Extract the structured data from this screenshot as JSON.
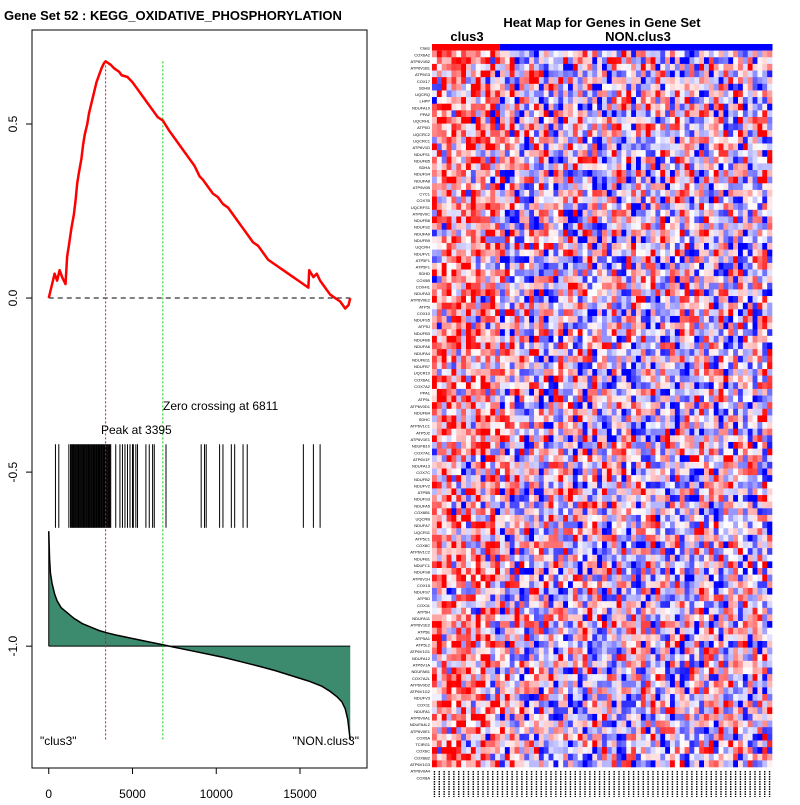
{
  "chart_data": [
    {
      "type": "line",
      "title": "Gene Set  52 : KEGG_OXIDATIVE_PHOSPHORYLATION",
      "xlabel": "",
      "ylabel": "",
      "xlim": [
        -1000,
        19000
      ],
      "ylim": [
        -1.35,
        0.77
      ],
      "x_ticks": [
        0,
        5000,
        10000,
        15000
      ],
      "x_tick_labels": [
        "0",
        "5000",
        "10000",
        "15000"
      ],
      "y_ticks": [
        0.5,
        0.0,
        -0.5,
        -1.0
      ],
      "y_tick_labels": [
        "0.5",
        "0.0",
        "-0.5",
        "-1.0"
      ],
      "n_genes": 18000,
      "running_es": {
        "name": "Enrichment score",
        "color": "#ff0000",
        "x": [
          0,
          200,
          350,
          500,
          650,
          800,
          1000,
          1100,
          1200,
          1350,
          1500,
          1600,
          1700,
          1800,
          1950,
          2050,
          2150,
          2300,
          2400,
          2550,
          2700,
          2850,
          3000,
          3150,
          3300,
          3395,
          3550,
          3700,
          3900,
          4200,
          4350,
          4700,
          5000,
          5300,
          5600,
          5900,
          6200,
          6500,
          6811,
          7200,
          7500,
          7800,
          8100,
          8400,
          8700,
          9000,
          9200,
          9500,
          9800,
          10100,
          10400,
          10700,
          11000,
          11300,
          11600,
          11900,
          12200,
          12500,
          12800,
          13100,
          13400,
          13700,
          14000,
          14300,
          14600,
          14900,
          15200,
          15500,
          15550,
          15800,
          16000,
          16200,
          16500,
          16800,
          17100,
          17400,
          17700,
          17900,
          18000
        ],
        "y": [
          0.0,
          0.04,
          0.07,
          0.05,
          0.08,
          0.06,
          0.04,
          0.12,
          0.15,
          0.2,
          0.24,
          0.28,
          0.33,
          0.36,
          0.4,
          0.44,
          0.47,
          0.5,
          0.53,
          0.56,
          0.59,
          0.62,
          0.64,
          0.66,
          0.675,
          0.68,
          0.675,
          0.67,
          0.66,
          0.65,
          0.64,
          0.635,
          0.62,
          0.6,
          0.58,
          0.56,
          0.54,
          0.52,
          0.51,
          0.48,
          0.46,
          0.44,
          0.42,
          0.4,
          0.38,
          0.35,
          0.34,
          0.32,
          0.3,
          0.29,
          0.27,
          0.26,
          0.24,
          0.22,
          0.2,
          0.18,
          0.16,
          0.15,
          0.13,
          0.11,
          0.1,
          0.09,
          0.08,
          0.07,
          0.06,
          0.05,
          0.04,
          0.03,
          0.08,
          0.06,
          0.07,
          0.05,
          0.03,
          0.01,
          0.0,
          -0.01,
          -0.03,
          -0.02,
          0.0
        ]
      },
      "baseline": {
        "y": 0.0,
        "style": "dashed",
        "color": "#000000"
      },
      "peak": {
        "label": "Peak at 3395",
        "x": 3395,
        "color": "#ff0000"
      },
      "zero_crossing": {
        "label": "Zero crossing at 6811",
        "x": 6811,
        "color": "#00cc00"
      },
      "hit_positions": [
        400,
        600,
        1200,
        1300,
        1350,
        1400,
        1450,
        1500,
        1550,
        1600,
        1650,
        1700,
        1750,
        1800,
        1850,
        1900,
        1950,
        2000,
        2050,
        2100,
        2150,
        2200,
        2250,
        2300,
        2350,
        2400,
        2450,
        2500,
        2550,
        2600,
        2650,
        2700,
        2750,
        2800,
        2850,
        2900,
        2950,
        3000,
        3050,
        3100,
        3150,
        3200,
        3250,
        3300,
        3350,
        3395,
        3450,
        3500,
        3550,
        3600,
        3650,
        3700,
        4000,
        4250,
        4400,
        4550,
        4700,
        4850,
        5000,
        5050,
        5200,
        5300,
        5800,
        6000,
        6200,
        6300,
        7000,
        9100,
        9300,
        9400,
        10200,
        10400,
        10900,
        11100,
        11600,
        11850,
        15200,
        15800,
        16200
      ],
      "hit_tick_range": [
        -0.42,
        -0.66
      ],
      "ranked_metric": {
        "color": "#3d8b6e",
        "baseline": -1.0,
        "x": [
          0,
          50,
          100,
          200,
          350,
          500,
          750,
          1000,
          1500,
          2000,
          2500,
          3000,
          3500,
          4000,
          5000,
          6000,
          6811,
          7500,
          8500,
          9500,
          10500,
          11500,
          12500,
          13500,
          14500,
          15500,
          16300,
          16800,
          17200,
          17500,
          17700,
          17850,
          17950,
          18000
        ],
        "y": [
          -0.67,
          -0.75,
          -0.79,
          -0.82,
          -0.85,
          -0.87,
          -0.89,
          -0.9,
          -0.92,
          -0.935,
          -0.945,
          -0.955,
          -0.962,
          -0.968,
          -0.978,
          -0.988,
          -0.996,
          -1.003,
          -1.013,
          -1.023,
          -1.033,
          -1.045,
          -1.057,
          -1.07,
          -1.085,
          -1.1,
          -1.115,
          -1.13,
          -1.145,
          -1.16,
          -1.18,
          -1.21,
          -1.25,
          -1.27
        ]
      },
      "class_labels": {
        "left": "\"clus3\"",
        "right": "\"NON.clus3\""
      }
    },
    {
      "type": "heatmap",
      "title": "Heat Map for Genes in Gene Set",
      "groups": [
        {
          "name": "clus3",
          "color": "#ff0000",
          "n_samples": 14
        },
        {
          "name": "NON.clus3",
          "color": "#0000ff",
          "n_samples": 56
        }
      ],
      "n_genes": 108,
      "colormap": {
        "low": "#0000ff",
        "mid": "#ffffff",
        "high": "#ff0000"
      },
      "row_labels": [
        "Class",
        "COX6A2",
        "ATP6V1B2",
        "ATP6V1B1",
        "ATP5G3",
        "COX17",
        "SDHB",
        "UQCRQ",
        "LHPP",
        "NDUFA10",
        "PPA2",
        "UQCRHL",
        "ATP5O",
        "UQCRC2",
        "UQCRC1",
        "ATP6V1D",
        "NDUFS1",
        "NDUFB5",
        "SDHA",
        "NDUFS4",
        "NDUFA8",
        "ATP6V0B",
        "CYC1",
        "COX7B",
        "UQCRFS1",
        "ATP6V0C",
        "NDUFB8",
        "NDUFS2",
        "NDUFA9",
        "NDUFB9",
        "UQCRH",
        "NDUFV1",
        "ATP5F1",
        "ATP5F1",
        "SDHD",
        "COX5B",
        "COX4I1",
        "NDUFA3",
        "ATP6V0E2",
        "ATP5I",
        "COX10",
        "NDUFS5",
        "ATP5J",
        "NDUFB3",
        "NDUFB6",
        "NDUFA6",
        "NDUFA4",
        "NDUFB11",
        "NDUFB7",
        "UQCR10",
        "COX6A1",
        "COX7A2",
        "PPA1",
        "ATP5L",
        "ATP6V0D1",
        "NDUFB4",
        "SDHC",
        "ATP6V1C1",
        "ATP5J2",
        "ATP6V1E1",
        "NDUFB10",
        "COX7A1",
        "ATP6V1F",
        "NDUFA13",
        "COX7C",
        "NDUFB2",
        "NDUFV2",
        "ATP5B",
        "NDUFS3",
        "NDUFA5",
        "COX6B1",
        "UQCRB",
        "NDUFA7",
        "UQCR11",
        "ATP5C1",
        "COX8C",
        "ATP6V1C2",
        "NDUFB1",
        "NDUFC1",
        "NDUFS8",
        "ATP6V1H",
        "COX15",
        "NDUFS7",
        "ATP5D",
        "COX11",
        "ATP5H",
        "NDUFA11",
        "ATP6V1E2",
        "ATP5E",
        "ATP5A1",
        "ATP5L2",
        "ATP6V1G1",
        "NDUFA12",
        "ATP6V1A",
        "NDUFAB1",
        "COX7A2L",
        "ATP6V0D2",
        "ATP6V1G2",
        "NDUFV3",
        "COX11",
        "NDUFA1",
        "ATP6V0A1",
        "NDUFA4L2",
        "ATP6V0E1",
        "COX5A",
        "TCIRG1",
        "COX6C",
        "COX6B2",
        "ATP6V1G3",
        "ATP6V0A4",
        "COX8A"
      ]
    }
  ]
}
